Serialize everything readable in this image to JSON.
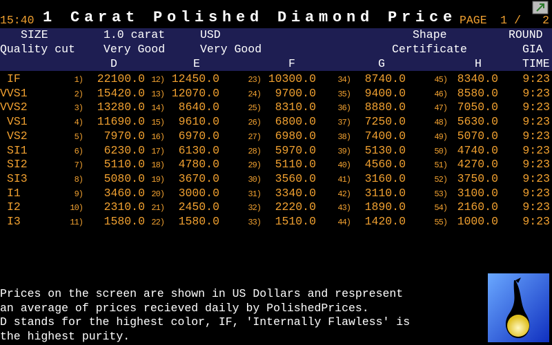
{
  "header": {
    "time": "15:40",
    "title": "1 Carat Polished Diamond Price",
    "page_label": "PAGE",
    "page": "1",
    "page_sep": "/",
    "page_total": "2"
  },
  "column_header": {
    "row1": [
      "SIZE",
      "1.0 carat",
      "USD",
      "Shape",
      "ROUND"
    ],
    "row2": [
      "Quality cut",
      "Very Good",
      "Very Good",
      "Certificate",
      "GIA"
    ],
    "row3": [
      "D",
      "E",
      "F",
      "G",
      "H",
      "TIME"
    ]
  },
  "table": {
    "rows": [
      {
        "grade": "IF",
        "cells": [
          {
            "index": "1)",
            "price": "22100.0"
          },
          {
            "index": "12)",
            "price": "12450.0"
          },
          {
            "index": "23)",
            "price": "10300.0"
          },
          {
            "index": "34)",
            "price": "8740.0"
          },
          {
            "index": "45)",
            "price": "8340.0"
          }
        ],
        "time": "9:23"
      },
      {
        "grade": "VVS1",
        "cells": [
          {
            "index": "2)",
            "price": "15420.0"
          },
          {
            "index": "13)",
            "price": "12070.0"
          },
          {
            "index": "24)",
            "price": "9700.0"
          },
          {
            "index": "35)",
            "price": "9400.0"
          },
          {
            "index": "46)",
            "price": "8580.0"
          }
        ],
        "time": "9:23"
      },
      {
        "grade": "VVS2",
        "cells": [
          {
            "index": "3)",
            "price": "13280.0"
          },
          {
            "index": "14)",
            "price": "8640.0"
          },
          {
            "index": "25)",
            "price": "8310.0"
          },
          {
            "index": "36)",
            "price": "8880.0"
          },
          {
            "index": "47)",
            "price": "7050.0"
          }
        ],
        "time": "9:23"
      },
      {
        "grade": "VS1",
        "cells": [
          {
            "index": "4)",
            "price": "11690.0"
          },
          {
            "index": "15)",
            "price": "9610.0"
          },
          {
            "index": "26)",
            "price": "6800.0"
          },
          {
            "index": "37)",
            "price": "7250.0"
          },
          {
            "index": "48)",
            "price": "5630.0"
          }
        ],
        "time": "9:23"
      },
      {
        "grade": "VS2",
        "cells": [
          {
            "index": "5)",
            "price": "7970.0"
          },
          {
            "index": "16)",
            "price": "6970.0"
          },
          {
            "index": "27)",
            "price": "6980.0"
          },
          {
            "index": "38)",
            "price": "7400.0"
          },
          {
            "index": "49)",
            "price": "5070.0"
          }
        ],
        "time": "9:23"
      },
      {
        "grade": "SI1",
        "cells": [
          {
            "index": "6)",
            "price": "6230.0"
          },
          {
            "index": "17)",
            "price": "6130.0"
          },
          {
            "index": "28)",
            "price": "5970.0"
          },
          {
            "index": "39)",
            "price": "5130.0"
          },
          {
            "index": "50)",
            "price": "4740.0"
          }
        ],
        "time": "9:23"
      },
      {
        "grade": "SI2",
        "cells": [
          {
            "index": "7)",
            "price": "5110.0"
          },
          {
            "index": "18)",
            "price": "4780.0"
          },
          {
            "index": "29)",
            "price": "5110.0"
          },
          {
            "index": "40)",
            "price": "4560.0"
          },
          {
            "index": "51)",
            "price": "4270.0"
          }
        ],
        "time": "9:23"
      },
      {
        "grade": "SI3",
        "cells": [
          {
            "index": "8)",
            "price": "5080.0"
          },
          {
            "index": "19)",
            "price": "3670.0"
          },
          {
            "index": "30)",
            "price": "3560.0"
          },
          {
            "index": "41)",
            "price": "3160.0"
          },
          {
            "index": "52)",
            "price": "3750.0"
          }
        ],
        "time": "9:23"
      },
      {
        "grade": "I1",
        "cells": [
          {
            "index": "9)",
            "price": "3460.0"
          },
          {
            "index": "20)",
            "price": "3000.0"
          },
          {
            "index": "31)",
            "price": "3340.0"
          },
          {
            "index": "42)",
            "price": "3110.0"
          },
          {
            "index": "53)",
            "price": "3100.0"
          }
        ],
        "time": "9:23"
      },
      {
        "grade": "I2",
        "cells": [
          {
            "index": "10)",
            "price": "2310.0"
          },
          {
            "index": "21)",
            "price": "2450.0"
          },
          {
            "index": "32)",
            "price": "2220.0"
          },
          {
            "index": "43)",
            "price": "1890.0"
          },
          {
            "index": "54)",
            "price": "2160.0"
          }
        ],
        "time": "9:23"
      },
      {
        "grade": "I3",
        "cells": [
          {
            "index": "11)",
            "price": "1580.0"
          },
          {
            "index": "22)",
            "price": "1580.0"
          },
          {
            "index": "33)",
            "price": "1510.0"
          },
          {
            "index": "44)",
            "price": "1420.0"
          },
          {
            "index": "55)",
            "price": "1000.0"
          }
        ],
        "time": "9:23"
      }
    ]
  },
  "footer": {
    "lines": [
      "Prices on the screen are shown in US Dollars and respresent",
      "an average of prices recieved daily by PolishedPrices.",
      "D stands for the highest color, IF, 'Internally Flawless' is",
      "the highest purity."
    ]
  }
}
